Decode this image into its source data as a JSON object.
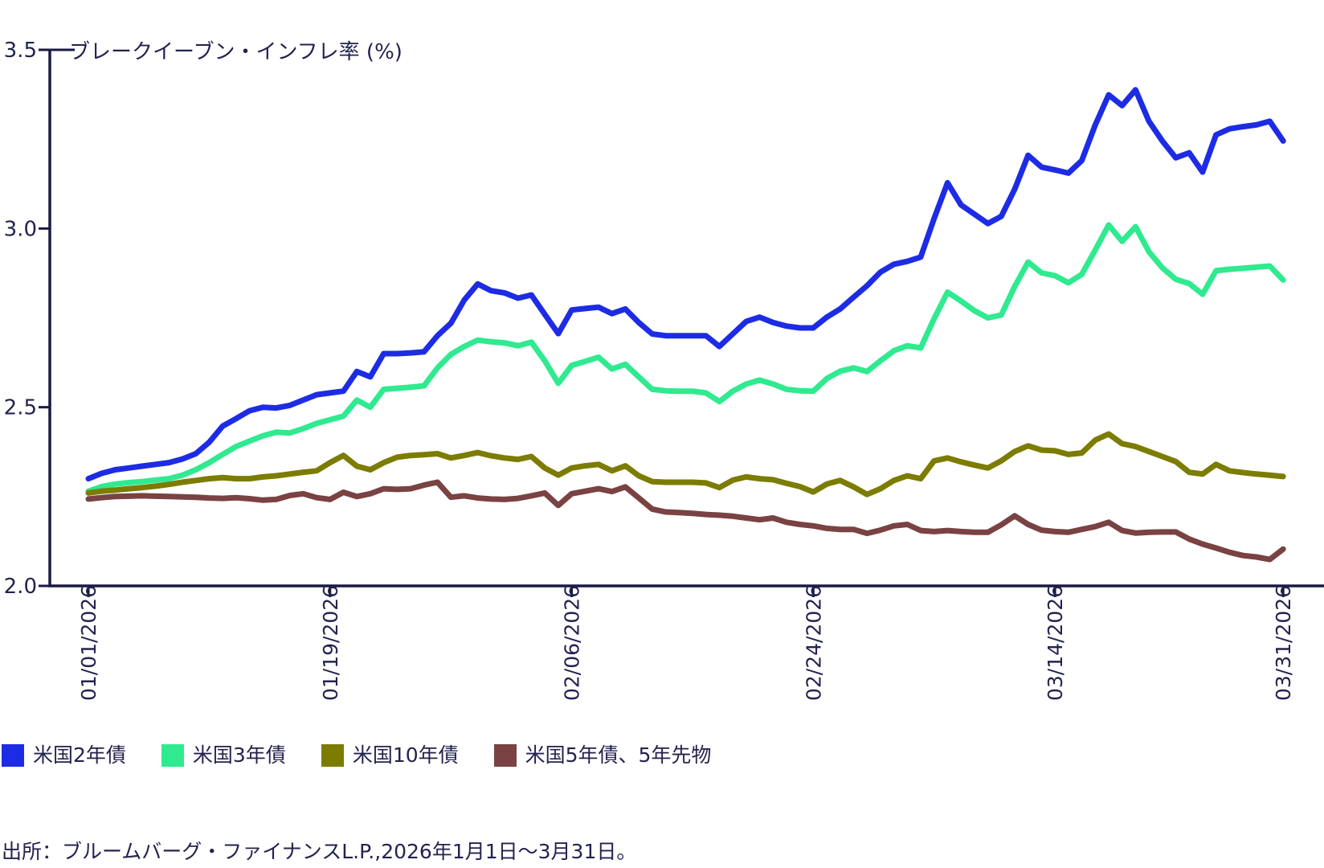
{
  "title": "ブレークイーブン・インフレ率 (%)",
  "source": "出所：ブルームバーグ・ファイナンスL.P.,2026年1月1日〜3月31日。",
  "colors": {
    "axis": "#191945",
    "text": "#23234f",
    "background": "#ffffff"
  },
  "chart_data": {
    "type": "line",
    "title": "ブレークイーブン・インフレ率 (%)",
    "xlabel": "",
    "ylabel": "",
    "ylim": [
      2.0,
      3.5
    ],
    "ytick_labels": [
      "2.0",
      "2.5",
      "3.0",
      "3.5"
    ],
    "ytick_values": [
      2.0,
      2.5,
      3.0,
      3.5
    ],
    "x_is_daily_dates": true,
    "x_range_days": [
      0,
      89
    ],
    "xtick_days": [
      0,
      18,
      36,
      54,
      72,
      89
    ],
    "xtick_labels": [
      "01/01/2026",
      "01/19/2026",
      "02/06/2026",
      "02/24/2026",
      "03/14/2026",
      "03/31/2026"
    ],
    "grid": false,
    "legend_position": "bottom",
    "series": [
      {
        "id": "us-2y",
        "name": "米国2年債",
        "color": "#1d2ce4",
        "values": [
          2.3,
          2.315,
          2.325,
          2.33,
          2.335,
          2.34,
          2.345,
          2.355,
          2.37,
          2.402,
          2.447,
          2.468,
          2.49,
          2.5,
          2.498,
          2.505,
          2.52,
          2.535,
          2.54,
          2.545,
          2.6,
          2.585,
          2.65,
          2.65,
          2.652,
          2.655,
          2.7,
          2.735,
          2.8,
          2.845,
          2.826,
          2.82,
          2.805,
          2.814,
          2.76,
          2.706,
          2.772,
          2.776,
          2.78,
          2.762,
          2.775,
          2.737,
          2.705,
          2.7,
          2.7,
          2.7,
          2.7,
          2.67,
          2.705,
          2.74,
          2.752,
          2.737,
          2.727,
          2.722,
          2.722,
          2.752,
          2.775,
          2.808,
          2.84,
          2.878,
          2.9,
          2.908,
          2.92,
          3.028,
          3.128,
          3.066,
          3.04,
          3.014,
          3.034,
          3.11,
          3.205,
          3.172,
          3.164,
          3.155,
          3.19,
          3.29,
          3.374,
          3.344,
          3.388,
          3.3,
          3.245,
          3.198,
          3.212,
          3.158,
          3.262,
          3.279,
          3.285,
          3.29,
          3.3,
          3.245
        ]
      },
      {
        "id": "us-3y",
        "name": "米国3年債",
        "color": "#2fea8f",
        "values": [
          2.265,
          2.278,
          2.285,
          2.289,
          2.292,
          2.296,
          2.3,
          2.31,
          2.325,
          2.345,
          2.368,
          2.39,
          2.405,
          2.42,
          2.43,
          2.428,
          2.44,
          2.455,
          2.465,
          2.475,
          2.52,
          2.5,
          2.55,
          2.553,
          2.556,
          2.56,
          2.61,
          2.648,
          2.67,
          2.688,
          2.683,
          2.68,
          2.672,
          2.682,
          2.63,
          2.567,
          2.617,
          2.628,
          2.64,
          2.607,
          2.62,
          2.585,
          2.55,
          2.546,
          2.545,
          2.545,
          2.54,
          2.516,
          2.545,
          2.565,
          2.576,
          2.565,
          2.55,
          2.546,
          2.545,
          2.58,
          2.601,
          2.61,
          2.6,
          2.63,
          2.658,
          2.672,
          2.666,
          2.748,
          2.822,
          2.797,
          2.77,
          2.75,
          2.758,
          2.838,
          2.906,
          2.876,
          2.868,
          2.848,
          2.872,
          2.94,
          3.01,
          2.964,
          3.005,
          2.935,
          2.89,
          2.858,
          2.846,
          2.816,
          2.882,
          2.886,
          2.889,
          2.892,
          2.895,
          2.856
        ]
      },
      {
        "id": "us-10y",
        "name": "米国10年債",
        "color": "#7c7c00",
        "values": [
          2.26,
          2.265,
          2.268,
          2.272,
          2.275,
          2.279,
          2.284,
          2.29,
          2.295,
          2.3,
          2.303,
          2.3,
          2.3,
          2.305,
          2.308,
          2.313,
          2.318,
          2.322,
          2.345,
          2.365,
          2.335,
          2.325,
          2.345,
          2.36,
          2.365,
          2.367,
          2.37,
          2.358,
          2.365,
          2.373,
          2.364,
          2.358,
          2.354,
          2.362,
          2.33,
          2.31,
          2.33,
          2.336,
          2.34,
          2.322,
          2.336,
          2.308,
          2.292,
          2.29,
          2.29,
          2.29,
          2.288,
          2.275,
          2.296,
          2.305,
          2.3,
          2.297,
          2.287,
          2.278,
          2.263,
          2.285,
          2.295,
          2.277,
          2.256,
          2.272,
          2.295,
          2.308,
          2.3,
          2.35,
          2.358,
          2.347,
          2.338,
          2.33,
          2.35,
          2.376,
          2.392,
          2.38,
          2.378,
          2.368,
          2.372,
          2.408,
          2.425,
          2.398,
          2.39,
          2.376,
          2.362,
          2.348,
          2.318,
          2.313,
          2.34,
          2.322,
          2.317,
          2.313,
          2.31,
          2.306
        ]
      },
      {
        "id": "us-5y5y",
        "name": "米国5年債、5年先物",
        "color": "#7a4242",
        "values": [
          2.243,
          2.247,
          2.25,
          2.251,
          2.252,
          2.251,
          2.25,
          2.249,
          2.248,
          2.246,
          2.245,
          2.247,
          2.244,
          2.24,
          2.242,
          2.253,
          2.258,
          2.247,
          2.242,
          2.262,
          2.25,
          2.258,
          2.272,
          2.27,
          2.272,
          2.282,
          2.29,
          2.248,
          2.252,
          2.246,
          2.243,
          2.242,
          2.245,
          2.252,
          2.26,
          2.225,
          2.258,
          2.265,
          2.272,
          2.264,
          2.277,
          2.246,
          2.215,
          2.207,
          2.205,
          2.203,
          2.2,
          2.198,
          2.195,
          2.19,
          2.185,
          2.19,
          2.178,
          2.172,
          2.168,
          2.161,
          2.158,
          2.158,
          2.147,
          2.156,
          2.168,
          2.172,
          2.155,
          2.152,
          2.155,
          2.152,
          2.15,
          2.15,
          2.171,
          2.196,
          2.172,
          2.156,
          2.152,
          2.15,
          2.158,
          2.166,
          2.178,
          2.155,
          2.148,
          2.15,
          2.151,
          2.151,
          2.131,
          2.117,
          2.106,
          2.094,
          2.085,
          2.081,
          2.074,
          2.103
        ]
      }
    ]
  }
}
